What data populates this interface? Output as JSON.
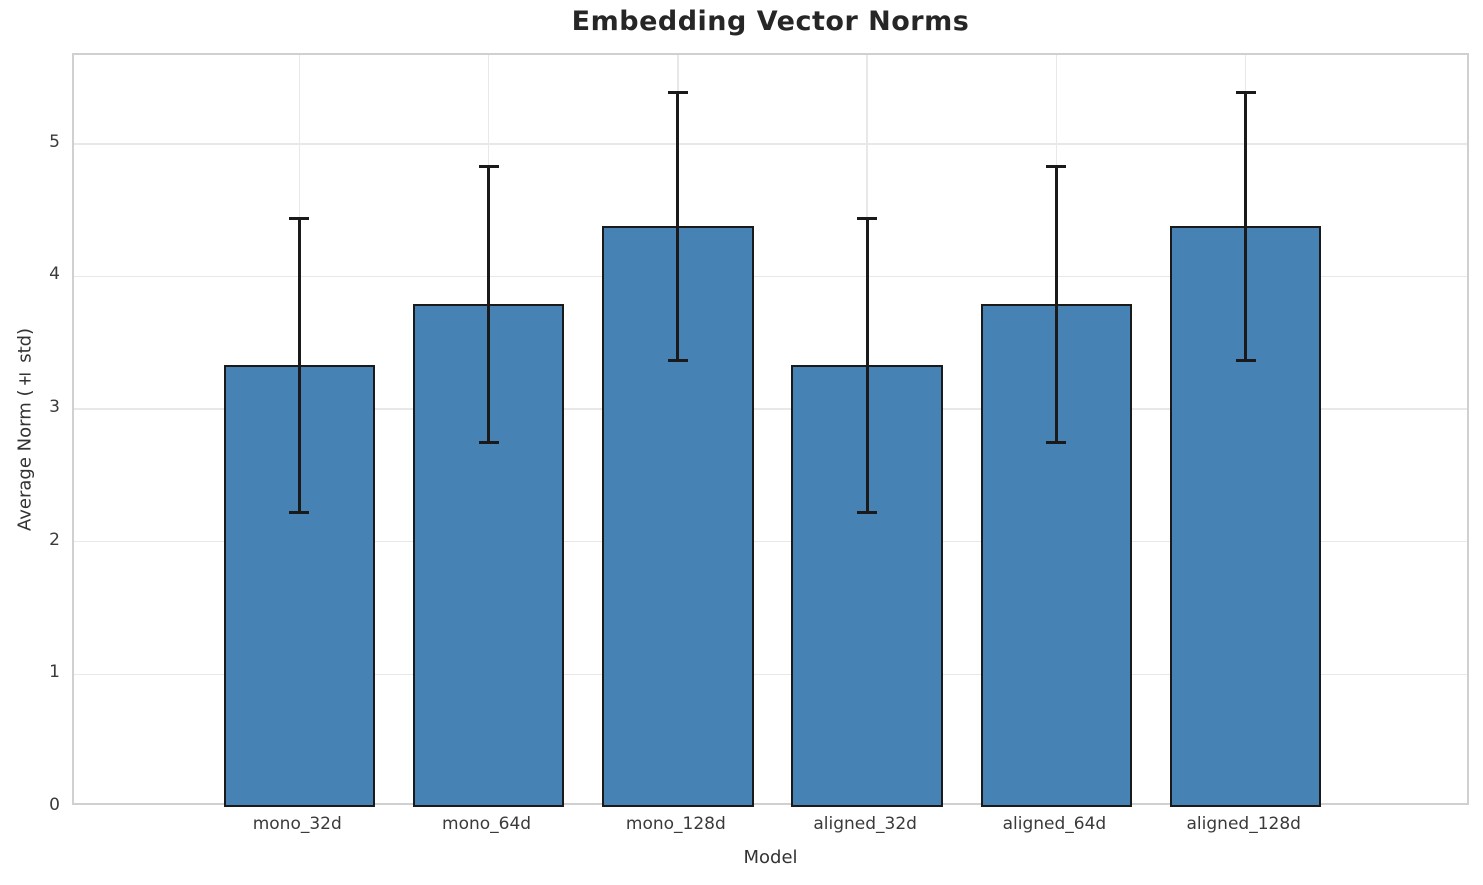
{
  "title": "Embedding Vector Norms",
  "axes": {
    "xlabel": "Model",
    "ylabel": "Average Norm (± std)"
  },
  "colors": {
    "bar_fill": "#4682b4",
    "bar_edge": "#1a1a1a",
    "error_bar": "#1a1a1a",
    "grid": "#e8e8e8",
    "spine": "#d0d0d0",
    "tick_text": "#3a3a3a",
    "title_text": "#262626",
    "background": "#ffffff"
  },
  "chart_data": {
    "type": "bar",
    "title": "Embedding Vector Norms",
    "xlabel": "Model",
    "ylabel": "Average Norm (± std)",
    "categories": [
      "mono_32d",
      "mono_64d",
      "mono_128d",
      "aligned_32d",
      "aligned_64d",
      "aligned_128d"
    ],
    "series": [
      {
        "name": "Average Norm",
        "values": [
          3.33,
          3.79,
          4.38,
          3.33,
          3.79,
          4.38
        ],
        "std": [
          1.11,
          1.04,
          1.01,
          1.11,
          1.04,
          1.01
        ]
      }
    ],
    "error_bounds": {
      "upper": [
        4.44,
        4.83,
        5.39,
        4.44,
        4.83,
        5.39
      ],
      "lower": [
        2.22,
        2.75,
        3.37,
        2.22,
        2.75,
        3.37
      ]
    },
    "yticks": [
      0,
      1,
      2,
      3,
      4,
      5
    ],
    "ytick_labels": [
      "0",
      "1",
      "2",
      "3",
      "4",
      "5"
    ],
    "ylim": [
      0,
      5.67
    ],
    "grid": true,
    "legend": false,
    "bar_color": "#4682b4",
    "bar_edge_color": "#1a1a1a",
    "error_color": "#1a1a1a"
  }
}
